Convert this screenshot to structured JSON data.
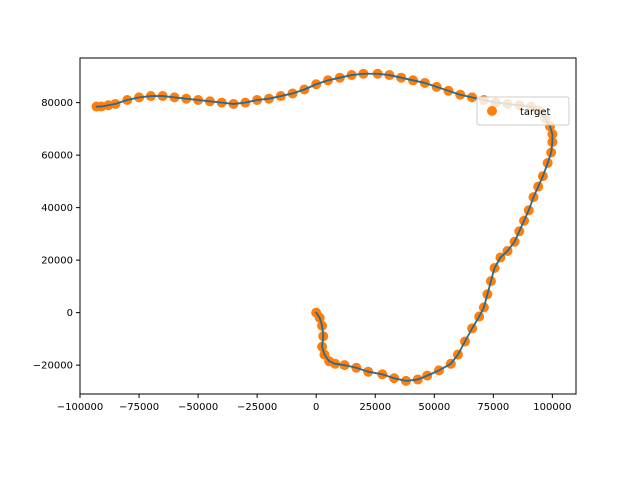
{
  "chart_data": {
    "type": "scatter",
    "title": "",
    "xlabel": "",
    "ylabel": "",
    "xlim": [
      -100000,
      110000
    ],
    "ylim": [
      -31000,
      97000
    ],
    "grid": false,
    "legend_position": "top-right",
    "x_ticks": [
      -100000,
      -75000,
      -50000,
      -25000,
      0,
      25000,
      50000,
      75000,
      100000
    ],
    "x_tick_labels": [
      "−100000",
      "−75000",
      "−50000",
      "−25000",
      "0",
      "25000",
      "50000",
      "75000",
      "100000"
    ],
    "y_ticks": [
      -20000,
      0,
      20000,
      40000,
      60000,
      80000
    ],
    "y_tick_labels": [
      "−20000",
      "0",
      "20000",
      "40000",
      "60000",
      "80000"
    ],
    "colors": {
      "target": "#ff7f0e",
      "line": "#2a6a8e",
      "axes": "#000000"
    },
    "series": [
      {
        "name": "target",
        "kind": "scatter",
        "points": [
          [
            0,
            0
          ],
          [
            1500,
            -2000
          ],
          [
            2500,
            -5000
          ],
          [
            3000,
            -9000
          ],
          [
            2500,
            -13000
          ],
          [
            3500,
            -16000
          ],
          [
            5500,
            -18500
          ],
          [
            8000,
            -19500
          ],
          [
            12000,
            -20000
          ],
          [
            17000,
            -21000
          ],
          [
            22000,
            -22500
          ],
          [
            28000,
            -23500
          ],
          [
            33000,
            -25000
          ],
          [
            38000,
            -26000
          ],
          [
            43000,
            -25500
          ],
          [
            47000,
            -24000
          ],
          [
            52000,
            -22000
          ],
          [
            57000,
            -19500
          ],
          [
            60000,
            -16000
          ],
          [
            63000,
            -11000
          ],
          [
            66000,
            -6000
          ],
          [
            69000,
            -1500
          ],
          [
            71000,
            2000
          ],
          [
            72500,
            7000
          ],
          [
            74000,
            12000
          ],
          [
            75500,
            17000
          ],
          [
            78000,
            21000
          ],
          [
            81000,
            23500
          ],
          [
            84000,
            27000
          ],
          [
            86000,
            31000
          ],
          [
            88000,
            35000
          ],
          [
            90000,
            39000
          ],
          [
            92000,
            44000
          ],
          [
            94000,
            48000
          ],
          [
            96000,
            52000
          ],
          [
            98000,
            57000
          ],
          [
            99500,
            61000
          ],
          [
            100000,
            65000
          ],
          [
            100000,
            68000
          ],
          [
            99000,
            71000
          ],
          [
            97000,
            74000
          ],
          [
            94000,
            77000
          ],
          [
            91000,
            78500
          ],
          [
            86000,
            79000
          ],
          [
            81000,
            79500
          ],
          [
            76000,
            80000
          ],
          [
            71000,
            81000
          ],
          [
            66000,
            82000
          ],
          [
            61000,
            83000
          ],
          [
            56000,
            84500
          ],
          [
            51000,
            86000
          ],
          [
            46000,
            87500
          ],
          [
            41000,
            88500
          ],
          [
            36000,
            89500
          ],
          [
            31000,
            90500
          ],
          [
            26000,
            91000
          ],
          [
            20000,
            91000
          ],
          [
            15000,
            90500
          ],
          [
            10000,
            89500
          ],
          [
            5000,
            88500
          ],
          [
            0,
            87000
          ],
          [
            -5000,
            85000
          ],
          [
            -10000,
            83500
          ],
          [
            -15000,
            82500
          ],
          [
            -20000,
            81500
          ],
          [
            -25000,
            81000
          ],
          [
            -30000,
            80000
          ],
          [
            -35000,
            79500
          ],
          [
            -40000,
            80000
          ],
          [
            -45000,
            80500
          ],
          [
            -50000,
            81000
          ],
          [
            -55000,
            81500
          ],
          [
            -60000,
            82000
          ],
          [
            -65000,
            82500
          ],
          [
            -70000,
            82500
          ],
          [
            -75000,
            82000
          ],
          [
            -80000,
            81000
          ],
          [
            -85000,
            79500
          ],
          [
            -88000,
            79000
          ],
          [
            -91000,
            78500
          ],
          [
            -93000,
            78500
          ]
        ]
      }
    ],
    "legend_entries": [
      "target"
    ]
  }
}
